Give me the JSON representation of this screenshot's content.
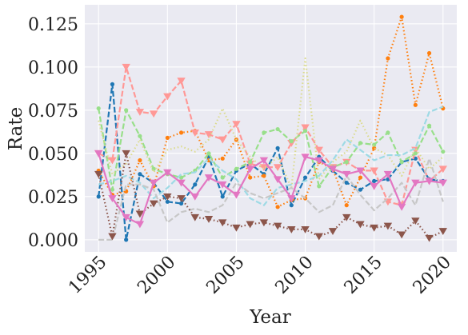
{
  "chart_data": {
    "type": "line",
    "xlabel": "Year",
    "ylabel": "Rate",
    "xlim": [
      1994.0,
      2021.0
    ],
    "ylim": [
      -0.007,
      0.136
    ],
    "xticks": [
      1995,
      2000,
      2005,
      2010,
      2015,
      2020
    ],
    "yticks": [
      0.0,
      0.025,
      0.05,
      0.075,
      0.1,
      0.125
    ],
    "xtick_labels": [
      "1995",
      "2000",
      "2005",
      "2010",
      "2015",
      "2020"
    ],
    "ytick_labels": [
      "0.000",
      "0.025",
      "0.050",
      "0.075",
      "0.100",
      "0.125"
    ],
    "grid": true,
    "background": "#eaeaf2",
    "x": [
      1995,
      1996,
      1997,
      1998,
      1999,
      2000,
      2001,
      2002,
      2003,
      2004,
      2005,
      2006,
      2007,
      2008,
      2009,
      2010,
      2011,
      2012,
      2013,
      2014,
      2015,
      2016,
      2017,
      2018,
      2019,
      2020
    ],
    "series": [
      {
        "color": "#1f77b4",
        "dash": "7,3",
        "marker": "circle",
        "values": [
          0.025,
          0.09,
          0.0,
          0.038,
          0.033,
          0.022,
          0.021,
          0.032,
          0.048,
          0.025,
          0.04,
          0.044,
          0.038,
          0.053,
          0.02,
          0.036,
          0.048,
          0.04,
          0.033,
          0.029,
          0.034,
          0.035,
          0.045,
          0.047,
          0.035,
          0.034
        ]
      },
      {
        "color": "#ff7f0e",
        "dash": "1.5,3",
        "marker": "circle",
        "values": [
          0.04,
          0.026,
          0.028,
          0.046,
          0.031,
          0.059,
          0.062,
          0.063,
          0.046,
          0.047,
          0.058,
          0.036,
          0.037,
          0.019,
          0.023,
          0.024,
          0.045,
          0.041,
          0.02,
          0.036,
          0.053,
          0.105,
          0.129,
          0.078,
          0.108,
          0.076
        ]
      },
      {
        "color": "#ff9896",
        "dash": "7,3",
        "marker": "triangle-down",
        "values": [
          0.05,
          0.046,
          0.1,
          0.074,
          0.073,
          0.083,
          0.092,
          0.062,
          0.061,
          0.058,
          0.067,
          0.044,
          0.042,
          0.042,
          0.056,
          0.065,
          0.052,
          0.042,
          0.045,
          0.04,
          0.04,
          0.022,
          0.02,
          0.052,
          0.034,
          0.041
        ]
      },
      {
        "color": "#98df8a",
        "dash": "7,3",
        "marker": "circle",
        "values": [
          0.076,
          0.029,
          0.075,
          0.06,
          0.041,
          0.038,
          0.036,
          0.04,
          0.05,
          0.036,
          0.041,
          0.045,
          0.062,
          0.064,
          0.057,
          0.063,
          0.031,
          0.042,
          0.045,
          0.056,
          0.055,
          0.062,
          0.045,
          0.05,
          0.066,
          0.051
        ]
      },
      {
        "color": "#dbdb8d",
        "dash": "1.5,3",
        "marker": "none",
        "values": [
          0.069,
          0.038,
          0.044,
          0.058,
          0.039,
          0.052,
          0.054,
          0.051,
          0.058,
          0.076,
          0.058,
          0.048,
          0.041,
          0.048,
          0.03,
          0.105,
          0.035,
          0.045,
          0.051,
          0.069,
          0.053,
          0.049,
          0.037,
          0.053,
          0.041,
          0.048
        ]
      },
      {
        "color": "#9edae5",
        "dash": "7,3",
        "marker": "none",
        "values": [
          0.032,
          0.034,
          0.037,
          0.033,
          0.024,
          0.03,
          0.038,
          0.039,
          0.047,
          0.04,
          0.035,
          0.024,
          0.02,
          0.03,
          0.032,
          0.034,
          0.037,
          0.046,
          0.058,
          0.052,
          0.046,
          0.049,
          0.049,
          0.053,
          0.074,
          0.077
        ]
      },
      {
        "color": "#c7c7c7",
        "dash": "7,3",
        "marker": "none",
        "values": [
          0.0,
          0.0,
          0.032,
          0.032,
          0.029,
          0.01,
          0.016,
          0.018,
          0.016,
          0.02,
          0.033,
          0.027,
          0.024,
          0.027,
          0.03,
          0.024,
          0.016,
          0.02,
          0.037,
          0.026,
          0.017,
          0.024,
          0.033,
          0.02,
          0.047,
          0.022
        ]
      },
      {
        "color": "#8c564b",
        "dash": "1.5,3",
        "marker": "triangle-down",
        "values": [
          0.038,
          0.002,
          0.05,
          0.015,
          0.021,
          0.025,
          0.024,
          0.013,
          0.012,
          0.01,
          0.007,
          0.009,
          0.01,
          0.008,
          0.006,
          0.006,
          0.002,
          0.005,
          0.013,
          0.009,
          0.007,
          0.008,
          0.003,
          0.011,
          0.001,
          0.005
        ]
      },
      {
        "color": "#e377c2",
        "dash": "none",
        "marker": "triangle-down",
        "values": [
          0.05,
          0.024,
          0.013,
          0.009,
          0.033,
          0.039,
          0.033,
          0.025,
          0.036,
          0.032,
          0.026,
          0.041,
          0.046,
          0.035,
          0.024,
          0.048,
          0.046,
          0.041,
          0.038,
          0.04,
          0.031,
          0.038,
          0.019,
          0.033,
          0.034,
          0.033
        ]
      }
    ]
  }
}
